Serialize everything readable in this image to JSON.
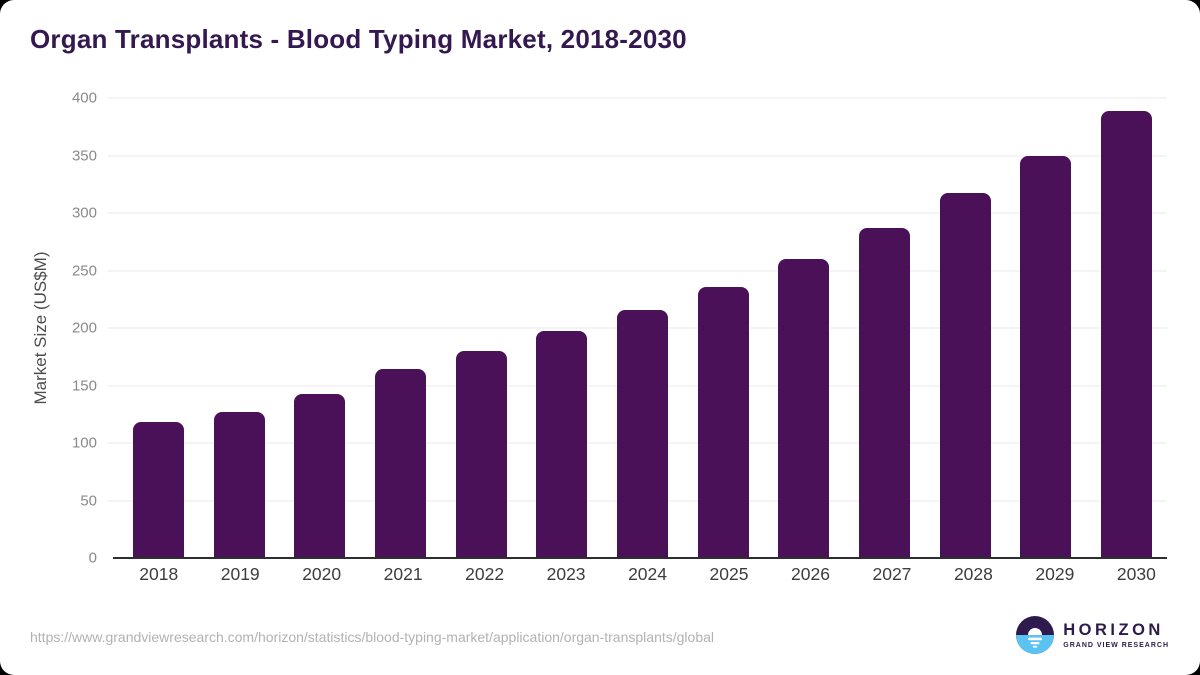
{
  "page": {
    "title": "Organ Transplants - Blood Typing Market, 2018-2030",
    "source_url": "https://www.grandviewresearch.com/horizon/statistics/blood-typing-market/application/organ-transplants/global"
  },
  "logo": {
    "wordmark": "HORIZON",
    "subtitle": "GRAND VIEW RESEARCH",
    "icon": "sunrise-horizon-circle-icon"
  },
  "colors": {
    "bar": "#4a1159",
    "title": "#33194f",
    "gridline": "#e8e8e8",
    "axis_line": "#2e2e2e",
    "y_tick_label": "#8a8a8a",
    "y_axis_title": "#4d4d4d",
    "x_tick_label": "#3d3d3d",
    "source_url": "#b2b2b2",
    "logo_purple": "#2f1a4d",
    "logo_blue": "#5bc3f2",
    "background": "#ffffff"
  },
  "chart_data": {
    "type": "bar",
    "title": "Organ Transplants - Blood Typing Market, 2018-2030",
    "categories": [
      "2018",
      "2019",
      "2020",
      "2021",
      "2022",
      "2023",
      "2024",
      "2025",
      "2026",
      "2027",
      "2028",
      "2029",
      "2030"
    ],
    "values": [
      118,
      127,
      143,
      164,
      180,
      197,
      216,
      236,
      260,
      287,
      317,
      350,
      389
    ],
    "xlabel": "",
    "ylabel": "Market Size (US$M)",
    "ylim": [
      0,
      400
    ],
    "yticks": [
      0,
      50,
      100,
      150,
      200,
      250,
      300,
      350,
      400
    ],
    "grid": true,
    "legend": false,
    "bar_color": "#4a1159"
  }
}
